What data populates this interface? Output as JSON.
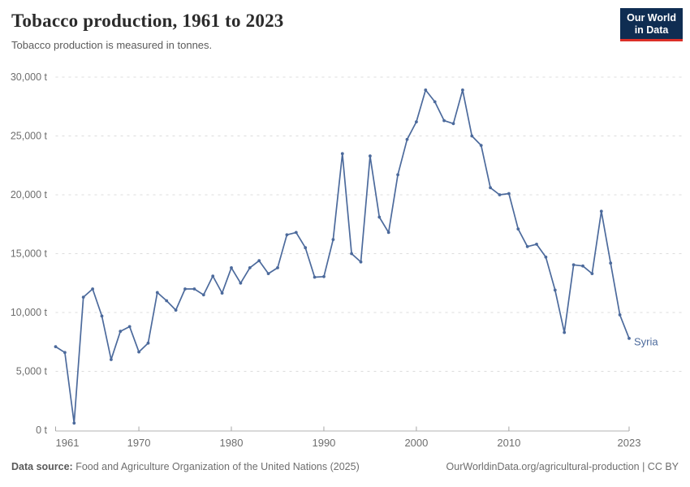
{
  "header": {
    "title": "Tobacco production, 1961 to 2023",
    "subtitle": "Tobacco production is measured in tonnes."
  },
  "logo": {
    "line1": "Our World",
    "line2": "in Data"
  },
  "footer": {
    "source_label": "Data source:",
    "source_text": "Food and Agriculture Organization of the United Nations (2025)",
    "attribution": "OurWorldinData.org/agricultural-production | CC BY"
  },
  "colors": {
    "line": "#4c6a9c",
    "grid": "#dcdcdc",
    "axis": "#b3b3b3",
    "tick": "#a6a6a6",
    "logo_bg": "#0f2d52",
    "logo_red": "#dc2f28"
  },
  "chart_data": {
    "type": "line",
    "title": "Tobacco production, 1961 to 2023",
    "ylabel": "Tobacco production (tonnes)",
    "unit": "t",
    "xlim": [
      1961,
      2023
    ],
    "ylim": [
      0,
      30000
    ],
    "yticks": [
      0,
      5000,
      10000,
      15000,
      20000,
      25000,
      30000
    ],
    "xticks": [
      1961,
      1970,
      1980,
      1990,
      2000,
      2010,
      2023
    ],
    "grid": "horizontal-dashed",
    "legend": "end-of-line-label",
    "x": [
      1961,
      1962,
      1963,
      1964,
      1965,
      1966,
      1967,
      1968,
      1969,
      1970,
      1971,
      1972,
      1973,
      1974,
      1975,
      1976,
      1977,
      1978,
      1979,
      1980,
      1981,
      1982,
      1983,
      1984,
      1985,
      1986,
      1987,
      1988,
      1989,
      1990,
      1991,
      1992,
      1993,
      1994,
      1995,
      1996,
      1997,
      1998,
      1999,
      2000,
      2001,
      2002,
      2003,
      2004,
      2005,
      2006,
      2007,
      2008,
      2009,
      2010,
      2011,
      2012,
      2013,
      2014,
      2015,
      2016,
      2017,
      2018,
      2019,
      2020,
      2021,
      2022,
      2023
    ],
    "series": [
      {
        "name": "Syria",
        "values": [
          7100,
          6600,
          600,
          11300,
          12000,
          9700,
          6000,
          8400,
          8800,
          6650,
          7400,
          11700,
          11000,
          10200,
          12000,
          12000,
          11500,
          13100,
          11650,
          13800,
          12500,
          13800,
          14400,
          13300,
          13800,
          16600,
          16800,
          15500,
          13000,
          13050,
          16200,
          23500,
          15000,
          14300,
          23300,
          18100,
          16800,
          21700,
          24700,
          26200,
          28900,
          27900,
          26300,
          26050,
          28900,
          25000,
          24200,
          20600,
          20000,
          20100,
          17100,
          15600,
          15800,
          14700,
          11900,
          8300,
          14050,
          13950,
          13300,
          18600,
          14200,
          9800,
          7800
        ]
      }
    ]
  }
}
